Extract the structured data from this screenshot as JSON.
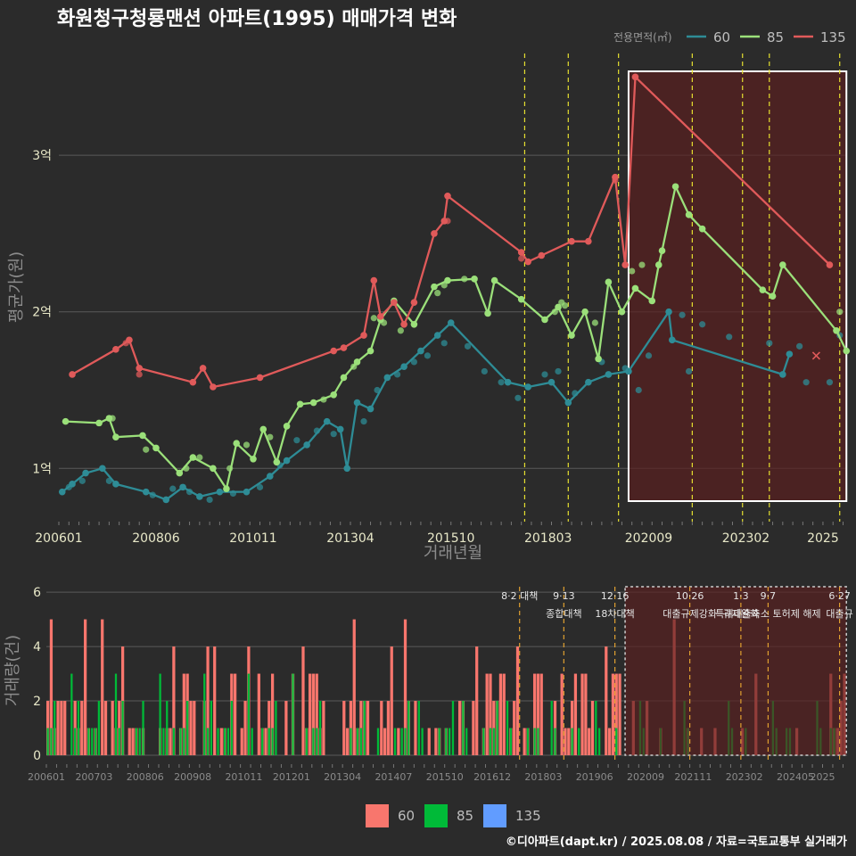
{
  "title": "화원청구청룡맨션 아파트(1995) 매매가격 변화",
  "legend": {
    "title": "전용면적(㎡)",
    "items": [
      {
        "label": "60",
        "color": "#2e8c96"
      },
      {
        "label": "85",
        "color": "#9be07a"
      },
      {
        "label": "135",
        "color": "#e05a5a"
      }
    ]
  },
  "footer": "©디아파트(dapt.kr) / 2025.08.08 / 자료=국토교통부 실거래가",
  "chart_data": [
    {
      "type": "line",
      "xlabel": "거래년월",
      "ylabel": "평균가(원)",
      "x_ticks": [
        "200601",
        "200806",
        "201011",
        "201304",
        "201510",
        "201803",
        "202009",
        "202302",
        "2025"
      ],
      "y_ticks": [
        "1억",
        "2억",
        "3억"
      ],
      "ylim": [
        0.66,
        3.65
      ],
      "y_unit": "억",
      "vlines": [
        "2017-08",
        "2018-09",
        "2019-12",
        "2021-10",
        "2023-01",
        "2023-09",
        "2025-06"
      ],
      "highlight_range": [
        "2020-03",
        "2025-08"
      ],
      "series": [
        {
          "name": "135",
          "color": "#e05a5a",
          "line": [
            [
              "2006-05",
              1.6
            ],
            [
              "2007-06",
              1.76
            ],
            [
              "2007-10",
              1.82
            ],
            [
              "2008-01",
              1.64
            ],
            [
              "2009-05",
              1.55
            ],
            [
              "2009-08",
              1.64
            ],
            [
              "2009-11",
              1.52
            ],
            [
              "2011-01",
              1.58
            ],
            [
              "2012-11",
              1.75
            ],
            [
              "2013-02",
              1.77
            ],
            [
              "2013-08",
              1.85
            ],
            [
              "2013-11",
              2.2
            ],
            [
              "2014-01",
              1.97
            ],
            [
              "2014-05",
              2.06
            ],
            [
              "2014-08",
              1.92
            ],
            [
              "2014-11",
              2.06
            ],
            [
              "2015-05",
              2.5
            ],
            [
              "2015-08",
              2.58
            ],
            [
              "2015-09",
              2.74
            ],
            [
              "2017-07",
              2.38
            ],
            [
              "2017-09",
              2.32
            ],
            [
              "2018-01",
              2.36
            ],
            [
              "2018-10",
              2.45
            ],
            [
              "2019-03",
              2.45
            ],
            [
              "2019-11",
              2.86
            ],
            [
              "2020-02",
              2.3
            ],
            [
              "2020-05",
              3.5
            ],
            [
              "2025-03",
              2.3
            ]
          ],
          "points": [
            [
              "2007-09",
              1.8
            ],
            [
              "2008-01",
              1.6
            ],
            [
              "2015-09",
              2.58
            ],
            [
              "2015-05",
              2.5
            ],
            [
              "2017-07",
              2.34
            ],
            [
              "2019-11",
              2.84
            ]
          ]
        },
        {
          "name": "85",
          "color": "#9be07a",
          "line": [
            [
              "2006-03",
              1.3
            ],
            [
              "2007-01",
              1.29
            ],
            [
              "2007-04",
              1.32
            ],
            [
              "2007-06",
              1.2
            ],
            [
              "2008-02",
              1.21
            ],
            [
              "2008-06",
              1.13
            ],
            [
              "2009-01",
              0.97
            ],
            [
              "2009-05",
              1.07
            ],
            [
              "2009-11",
              1.0
            ],
            [
              "2010-03",
              0.87
            ],
            [
              "2010-06",
              1.16
            ],
            [
              "2010-11",
              1.06
            ],
            [
              "2011-02",
              1.25
            ],
            [
              "2011-06",
              1.04
            ],
            [
              "2011-09",
              1.27
            ],
            [
              "2012-01",
              1.41
            ],
            [
              "2012-05",
              1.42
            ],
            [
              "2012-11",
              1.47
            ],
            [
              "2013-02",
              1.58
            ],
            [
              "2013-06",
              1.68
            ],
            [
              "2013-10",
              1.75
            ],
            [
              "2014-01",
              1.95
            ],
            [
              "2014-05",
              2.07
            ],
            [
              "2014-11",
              1.92
            ],
            [
              "2015-05",
              2.16
            ],
            [
              "2015-09",
              2.2
            ],
            [
              "2016-05",
              2.21
            ],
            [
              "2016-09",
              1.99
            ],
            [
              "2016-11",
              2.2
            ],
            [
              "2017-07",
              2.08
            ],
            [
              "2018-02",
              1.95
            ],
            [
              "2018-06",
              2.03
            ],
            [
              "2018-10",
              1.85
            ],
            [
              "2019-02",
              2.0
            ],
            [
              "2019-06",
              1.7
            ],
            [
              "2019-09",
              2.19
            ],
            [
              "2020-01",
              2.0
            ],
            [
              "2020-05",
              2.15
            ],
            [
              "2020-10",
              2.07
            ],
            [
              "2020-12",
              2.3
            ],
            [
              "2021-01",
              2.39
            ],
            [
              "2021-05",
              2.8
            ],
            [
              "2021-09",
              2.62
            ],
            [
              "2022-01",
              2.53
            ],
            [
              "2023-07",
              2.14
            ],
            [
              "2023-10",
              2.1
            ],
            [
              "2024-01",
              2.3
            ],
            [
              "2025-05",
              1.88
            ],
            [
              "2025-08",
              1.75
            ]
          ],
          "points": [
            [
              "2007-05",
              1.32
            ],
            [
              "2008-03",
              1.12
            ],
            [
              "2009-03",
              1.0
            ],
            [
              "2009-07",
              1.07
            ],
            [
              "2010-04",
              1.0
            ],
            [
              "2010-09",
              1.15
            ],
            [
              "2011-04",
              1.2
            ],
            [
              "2012-08",
              1.44
            ],
            [
              "2013-05",
              1.65
            ],
            [
              "2013-11",
              1.96
            ],
            [
              "2014-02",
              1.93
            ],
            [
              "2014-07",
              1.88
            ],
            [
              "2015-06",
              2.12
            ],
            [
              "2015-08",
              2.17
            ],
            [
              "2016-02",
              2.21
            ],
            [
              "2018-05",
              2.0
            ],
            [
              "2018-07",
              2.06
            ],
            [
              "2018-08",
              2.04
            ],
            [
              "2019-05",
              1.93
            ],
            [
              "2020-04",
              2.26
            ],
            [
              "2020-07",
              2.3
            ],
            [
              "2025-06",
              2.0
            ]
          ]
        },
        {
          "name": "60",
          "color": "#2e8c96",
          "line": [
            [
              "2006-02",
              0.85
            ],
            [
              "2006-05",
              0.9
            ],
            [
              "2006-09",
              0.97
            ],
            [
              "2007-02",
              1.0
            ],
            [
              "2007-06",
              0.9
            ],
            [
              "2008-03",
              0.85
            ],
            [
              "2008-09",
              0.8
            ],
            [
              "2009-02",
              0.88
            ],
            [
              "2009-07",
              0.82
            ],
            [
              "2010-01",
              0.85
            ],
            [
              "2010-09",
              0.85
            ],
            [
              "2011-04",
              0.95
            ],
            [
              "2011-09",
              1.05
            ],
            [
              "2012-03",
              1.15
            ],
            [
              "2012-09",
              1.3
            ],
            [
              "2013-01",
              1.25
            ],
            [
              "2013-03",
              1.0
            ],
            [
              "2013-06",
              1.42
            ],
            [
              "2013-10",
              1.38
            ],
            [
              "2014-03",
              1.58
            ],
            [
              "2014-08",
              1.65
            ],
            [
              "2015-01",
              1.75
            ],
            [
              "2015-06",
              1.85
            ],
            [
              "2015-10",
              1.93
            ],
            [
              "2017-03",
              1.55
            ],
            [
              "2017-09",
              1.52
            ],
            [
              "2018-04",
              1.55
            ],
            [
              "2018-09",
              1.42
            ],
            [
              "2019-03",
              1.55
            ],
            [
              "2019-09",
              1.6
            ],
            [
              "2020-03",
              1.62
            ],
            [
              "2021-03",
              2.0
            ],
            [
              "2021-04",
              1.82
            ],
            [
              "2024-01",
              1.6
            ],
            [
              "2024-03",
              1.73
            ]
          ],
          "points": [
            [
              "2006-04",
              0.88
            ],
            [
              "2006-08",
              0.92
            ],
            [
              "2007-04",
              0.92
            ],
            [
              "2008-05",
              0.83
            ],
            [
              "2008-11",
              0.87
            ],
            [
              "2009-04",
              0.85
            ],
            [
              "2009-10",
              0.8
            ],
            [
              "2010-05",
              0.84
            ],
            [
              "2011-01",
              0.88
            ],
            [
              "2011-07",
              1.02
            ],
            [
              "2011-12",
              1.18
            ],
            [
              "2012-06",
              1.24
            ],
            [
              "2012-11",
              1.22
            ],
            [
              "2013-08",
              1.3
            ],
            [
              "2013-12",
              1.5
            ],
            [
              "2014-06",
              1.6
            ],
            [
              "2014-11",
              1.68
            ],
            [
              "2015-03",
              1.72
            ],
            [
              "2015-08",
              1.8
            ],
            [
              "2016-03",
              1.78
            ],
            [
              "2016-08",
              1.62
            ],
            [
              "2017-01",
              1.55
            ],
            [
              "2017-06",
              1.45
            ],
            [
              "2018-02",
              1.6
            ],
            [
              "2018-06",
              1.62
            ],
            [
              "2018-11",
              1.48
            ],
            [
              "2019-07",
              1.68
            ],
            [
              "2020-02",
              1.64
            ],
            [
              "2020-06",
              1.5
            ],
            [
              "2020-09",
              1.72
            ],
            [
              "2021-07",
              1.98
            ],
            [
              "2021-09",
              1.62
            ],
            [
              "2022-01",
              1.92
            ],
            [
              "2022-09",
              1.84
            ],
            [
              "2023-09",
              1.8
            ],
            [
              "2024-06",
              1.78
            ],
            [
              "2024-08",
              1.55
            ],
            [
              "2025-03",
              1.55
            ],
            [
              "2025-06",
              1.85
            ]
          ],
          "marks": [
            [
              "2024-11",
              1.72
            ]
          ]
        }
      ]
    },
    {
      "type": "bar",
      "xlabel": "",
      "ylabel": "거래량(건)",
      "y_ticks": [
        0,
        2,
        4,
        6
      ],
      "ylim": [
        0,
        6.2
      ],
      "x_ticks": [
        "200601",
        "200703",
        "200806",
        "200908",
        "201011",
        "201201",
        "201304",
        "201407",
        "201510",
        "201612",
        "201803",
        "201906",
        "202009",
        "202111",
        "202302",
        "202405",
        "2025"
      ],
      "events": [
        {
          "date": "2017-08",
          "line1": "8·2 대책",
          "line2": ""
        },
        {
          "date": "2018-09",
          "line1": "9·13",
          "line2": "종합대책"
        },
        {
          "date": "2019-12",
          "line1": "12·16",
          "line2": "18차대책"
        },
        {
          "date": "2021-10",
          "line1": "10·26",
          "line2": "대출규제강화"
        },
        {
          "date": "2023-01",
          "line1": "1·3",
          "line2": "규제완화"
        },
        {
          "date": "2023-09",
          "line1": "9·7",
          "line2": "특례대출축소 토허제 해제"
        },
        {
          "date": "2025-06",
          "line1": "6·27",
          "line2": "대출규"
        }
      ],
      "highlight_range": [
        "2020-03",
        "2025-08"
      ],
      "series_colors": {
        "60": "#f8766d",
        "85": "#00ba38",
        "135": "#619cff"
      },
      "pattern": {
        "60": [
          2,
          0,
          1,
          0,
          2,
          1,
          0,
          0,
          3,
          1,
          0,
          2,
          0,
          1,
          0,
          3,
          2,
          4,
          0,
          5,
          1,
          2,
          0,
          3,
          1,
          0,
          2,
          0,
          4,
          1,
          0,
          3,
          2,
          0,
          1,
          0,
          2,
          0,
          3,
          1,
          2,
          0,
          1,
          4,
          0,
          3,
          2,
          1,
          0,
          3,
          0,
          2,
          1,
          5,
          2,
          0,
          3,
          1,
          0,
          2,
          1,
          4,
          0,
          2,
          1,
          3,
          0,
          2,
          0,
          1
        ],
        "85": [
          1,
          0,
          1,
          0,
          0,
          2,
          1,
          0,
          0,
          1,
          0,
          0,
          2,
          0,
          1,
          0,
          0,
          1,
          0,
          0,
          1,
          0,
          2,
          0,
          0,
          1,
          0,
          3,
          0,
          0,
          1,
          0,
          0,
          2,
          0,
          1,
          0,
          0,
          1,
          0
        ],
        "135": [
          0,
          1,
          0,
          0,
          0,
          0,
          1,
          0,
          0,
          0,
          0,
          0,
          0,
          1,
          0,
          0,
          0,
          0,
          0,
          0,
          0,
          1,
          0,
          0,
          0,
          0,
          0,
          0,
          0,
          0
        ]
      }
    }
  ]
}
